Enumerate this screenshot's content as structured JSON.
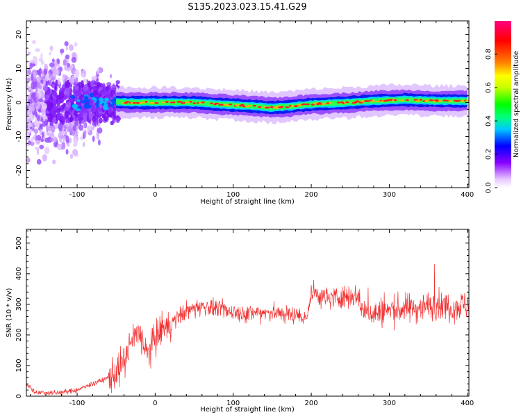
{
  "title": "S135.2023.023.15.41.G29",
  "chart_data": [
    {
      "type": "heatmap",
      "xlabel": "Height of straight line (km)",
      "ylabel": "Frequency (Hz)",
      "xlim": [
        -165,
        402
      ],
      "ylim": [
        -25,
        24
      ],
      "xticks": [
        -100,
        0,
        100,
        200,
        300,
        400
      ],
      "yticks": [
        -20,
        -10,
        0,
        10,
        20
      ],
      "colorbar": {
        "label": "Normalized spectral amplitude",
        "range": [
          0,
          1
        ],
        "ticks": [
          0.0,
          0.2,
          0.4,
          0.6,
          0.8
        ],
        "tick_labels": [
          "0.0",
          "0.2",
          "0.4",
          "0.6",
          "0.8"
        ]
      },
      "ridge_center": {
        "x": [
          -50,
          -30,
          0,
          50,
          80,
          120,
          150,
          170,
          200,
          250,
          280,
          320,
          360,
          400
        ],
        "y": [
          0.2,
          0,
          0,
          0,
          -0.5,
          -1,
          -1.5,
          -1.2,
          -0.5,
          0,
          0.5,
          0.8,
          0.5,
          0.5
        ]
      }
    },
    {
      "type": "line",
      "xlabel": "Height of straight line (km)",
      "ylabel": "SNR (10 * v/v)",
      "xlim": [
        -165,
        402
      ],
      "ylim": [
        0,
        545
      ],
      "xticks": [
        -100,
        0,
        100,
        200,
        300,
        400
      ],
      "yticks": [
        0,
        100,
        200,
        300,
        400,
        500
      ],
      "series": [
        {
          "color": "#f03030",
          "x": [
            -165,
            -155,
            -140,
            -120,
            -100,
            -80,
            -60,
            -50,
            -40,
            -30,
            -20,
            -10,
            0,
            10,
            20,
            30,
            40,
            50,
            60,
            80,
            100,
            120,
            140,
            160,
            180,
            195,
            200,
            220,
            240,
            260,
            265,
            280,
            300,
            320,
            340,
            360,
            380,
            400
          ],
          "y": [
            40,
            15,
            10,
            12,
            20,
            40,
            60,
            80,
            110,
            180,
            210,
            130,
            190,
            220,
            230,
            260,
            280,
            285,
            295,
            285,
            275,
            270,
            275,
            270,
            265,
            260,
            340,
            320,
            325,
            330,
            280,
            270,
            280,
            285,
            290,
            300,
            290,
            300
          ]
        }
      ]
    }
  ]
}
